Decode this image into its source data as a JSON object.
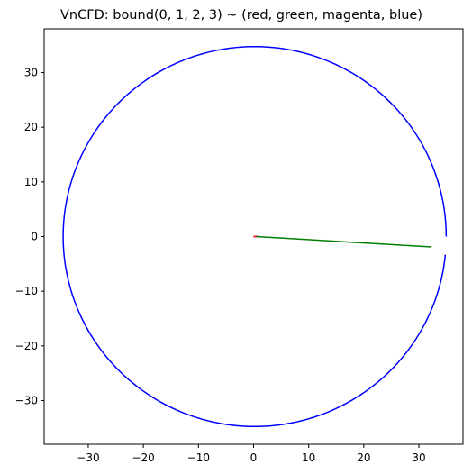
{
  "chart_data": {
    "type": "line",
    "title": "VnCFD: bound(0, 1, 2, 3) ~ (red, green, magenta, blue)",
    "xlabel": "",
    "ylabel": "",
    "xlim": [
      -38,
      38
    ],
    "ylim": [
      -38,
      38
    ],
    "grid": false,
    "x_ticks": [
      -30,
      -20,
      -10,
      0,
      10,
      20,
      30
    ],
    "y_ticks": [
      -30,
      -20,
      -10,
      0,
      10,
      20,
      30
    ],
    "series": [
      {
        "color": "#ff0000",
        "x": [
          0,
          1.0
        ],
        "y": [
          0,
          0
        ]
      },
      {
        "color": "#008000",
        "x": [
          0.5,
          32.3
        ],
        "y": [
          0,
          -1.9
        ]
      },
      {
        "color": "#ff00ff",
        "x": [
          0,
          0.9
        ],
        "y": [
          0.05,
          0
        ]
      },
      {
        "color": "#0000ff",
        "shape": "circle",
        "center": [
          0.2,
          0
        ],
        "radius": 34.75,
        "gap_angle_deg": [
          -5.5,
          0
        ]
      }
    ]
  }
}
